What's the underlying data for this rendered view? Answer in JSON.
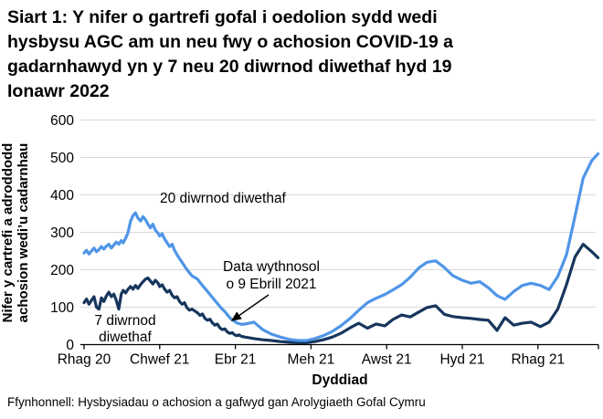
{
  "title_lines": [
    "Siart 1: Y nifer o gartrefi gofal i oedolion sydd wedi",
    "hysbysu AGC am un neu fwy o achosion COVID-19 a",
    "gadarnhawyd yn y 7 neu 20 diwrnod diwethaf hyd 19",
    "Ionawr 2022"
  ],
  "source": "Ffynhonnell: Hysbysiadau o achosion a gafwyd gan Arolygiaeth Gofal Cymru",
  "chart_data": {
    "type": "line",
    "title": "Siart 1: Y nifer o gartrefi gofal i oedolion sydd wedi hysbysu AGC am un neu fwy o achosion COVID-19 a gadarnhawyd yn y 7 neu 20 diwrnod diwethaf hyd 19 Ionawr 2022",
    "xlabel": "Dyddiad",
    "ylabel": "Nifer y cartrefi a adroddodd achosion wedi’u cadarnhau",
    "ylabel_lines": [
      "Nifer y cartrefi a adroddodd",
      "achosion wedi’u cadarnhau"
    ],
    "ylim": [
      0,
      600
    ],
    "y_ticks": [
      0,
      100,
      200,
      300,
      400,
      500,
      600
    ],
    "x_ticks": [
      {
        "date": "2020-12-01",
        "label": "Rhag 20"
      },
      {
        "date": "2021-02-01",
        "label": "Chwef 21"
      },
      {
        "date": "2021-04-01",
        "label": "Ebr 21"
      },
      {
        "date": "2021-06-01",
        "label": "Meh 21"
      },
      {
        "date": "2021-08-01",
        "label": "Awst 21"
      },
      {
        "date": "2021-10-01",
        "label": "Hyd 21"
      },
      {
        "date": "2021-12-01",
        "label": "Rhag 21"
      }
    ],
    "grid": "horizontal",
    "grid_color": "#d9d9d9",
    "annotations": {
      "series20_label": "20 diwrnod diwethaf",
      "series7_label_line1": "7 diwrnod",
      "series7_label_line2": "diwethaf",
      "weekly_note_line1": "Data wythnosol",
      "weekly_note_line2": "o 9 Ebrill 2021"
    },
    "series": [
      {
        "id": "20-day",
        "name": "20 diwrnod diwethaf",
        "color": "#4f95e8",
        "points": [
          [
            "2020-12-01",
            245
          ],
          [
            "2020-12-03",
            252
          ],
          [
            "2020-12-05",
            242
          ],
          [
            "2020-12-07",
            250
          ],
          [
            "2020-12-09",
            258
          ],
          [
            "2020-12-11",
            248
          ],
          [
            "2020-12-13",
            254
          ],
          [
            "2020-12-15",
            262
          ],
          [
            "2020-12-17",
            255
          ],
          [
            "2020-12-19",
            263
          ],
          [
            "2020-12-21",
            268
          ],
          [
            "2020-12-23",
            258
          ],
          [
            "2020-12-25",
            266
          ],
          [
            "2020-12-27",
            274
          ],
          [
            "2020-12-29",
            268
          ],
          [
            "2020-12-31",
            278
          ],
          [
            "2021-01-02",
            272
          ],
          [
            "2021-01-04",
            284
          ],
          [
            "2021-01-06",
            300
          ],
          [
            "2021-01-08",
            330
          ],
          [
            "2021-01-10",
            345
          ],
          [
            "2021-01-12",
            352
          ],
          [
            "2021-01-14",
            338
          ],
          [
            "2021-01-16",
            330
          ],
          [
            "2021-01-18",
            342
          ],
          [
            "2021-01-20",
            334
          ],
          [
            "2021-01-22",
            322
          ],
          [
            "2021-01-24",
            312
          ],
          [
            "2021-01-26",
            322
          ],
          [
            "2021-01-28",
            306
          ],
          [
            "2021-01-30",
            298
          ],
          [
            "2021-02-01",
            290
          ],
          [
            "2021-02-03",
            296
          ],
          [
            "2021-02-05",
            282
          ],
          [
            "2021-02-07",
            272
          ],
          [
            "2021-02-09",
            262
          ],
          [
            "2021-02-11",
            268
          ],
          [
            "2021-02-13",
            252
          ],
          [
            "2021-02-15",
            240
          ],
          [
            "2021-02-17",
            230
          ],
          [
            "2021-02-19",
            220
          ],
          [
            "2021-02-21",
            210
          ],
          [
            "2021-02-23",
            200
          ],
          [
            "2021-02-25",
            192
          ],
          [
            "2021-02-27",
            184
          ],
          [
            "2021-03-01",
            175
          ],
          [
            "2021-03-03",
            166
          ],
          [
            "2021-03-05",
            158
          ],
          [
            "2021-03-07",
            150
          ],
          [
            "2021-03-09",
            142
          ],
          [
            "2021-03-11",
            134
          ],
          [
            "2021-03-13",
            126
          ],
          [
            "2021-03-15",
            118
          ],
          [
            "2021-03-17",
            110
          ],
          [
            "2021-03-19",
            102
          ],
          [
            "2021-03-21",
            95
          ],
          [
            "2021-03-23",
            88
          ],
          [
            "2021-03-25",
            80
          ],
          [
            "2021-03-27",
            72
          ],
          [
            "2021-03-29",
            66
          ],
          [
            "2021-03-31",
            62
          ],
          [
            "2021-04-02",
            58
          ],
          [
            "2021-04-04",
            56
          ],
          [
            "2021-04-06",
            54
          ],
          [
            "2021-04-09",
            55
          ],
          [
            "2021-04-16",
            60
          ],
          [
            "2021-04-23",
            40
          ],
          [
            "2021-04-30",
            28
          ],
          [
            "2021-05-07",
            20
          ],
          [
            "2021-05-14",
            14
          ],
          [
            "2021-05-21",
            11
          ],
          [
            "2021-05-28",
            11
          ],
          [
            "2021-06-04",
            16
          ],
          [
            "2021-06-11",
            24
          ],
          [
            "2021-06-18",
            35
          ],
          [
            "2021-06-25",
            50
          ],
          [
            "2021-07-02",
            70
          ],
          [
            "2021-07-09",
            92
          ],
          [
            "2021-07-16",
            112
          ],
          [
            "2021-07-23",
            124
          ],
          [
            "2021-07-30",
            134
          ],
          [
            "2021-08-06",
            146
          ],
          [
            "2021-08-13",
            160
          ],
          [
            "2021-08-20",
            180
          ],
          [
            "2021-08-27",
            205
          ],
          [
            "2021-09-03",
            220
          ],
          [
            "2021-09-10",
            224
          ],
          [
            "2021-09-17",
            206
          ],
          [
            "2021-09-24",
            184
          ],
          [
            "2021-10-01",
            172
          ],
          [
            "2021-10-08",
            164
          ],
          [
            "2021-10-15",
            168
          ],
          [
            "2021-10-22",
            152
          ],
          [
            "2021-10-29",
            131
          ],
          [
            "2021-11-05",
            121
          ],
          [
            "2021-11-12",
            142
          ],
          [
            "2021-11-19",
            158
          ],
          [
            "2021-11-26",
            164
          ],
          [
            "2021-12-03",
            158
          ],
          [
            "2021-12-10",
            147
          ],
          [
            "2021-12-17",
            182
          ],
          [
            "2021-12-24",
            240
          ],
          [
            "2021-12-31",
            345
          ],
          [
            "2022-01-07",
            445
          ],
          [
            "2022-01-14",
            492
          ],
          [
            "2022-01-19",
            510
          ]
        ]
      },
      {
        "id": "7-day",
        "name": "7 diwrnod diwethaf",
        "color": "#17365d",
        "points": [
          [
            "2020-12-01",
            112
          ],
          [
            "2020-12-03",
            122
          ],
          [
            "2020-12-05",
            108
          ],
          [
            "2020-12-07",
            118
          ],
          [
            "2020-12-09",
            128
          ],
          [
            "2020-12-11",
            100
          ],
          [
            "2020-12-13",
            95
          ],
          [
            "2020-12-15",
            125
          ],
          [
            "2020-12-17",
            115
          ],
          [
            "2020-12-19",
            130
          ],
          [
            "2020-12-21",
            140
          ],
          [
            "2020-12-23",
            128
          ],
          [
            "2020-12-25",
            135
          ],
          [
            "2020-12-27",
            118
          ],
          [
            "2020-12-29",
            95
          ],
          [
            "2020-12-31",
            135
          ],
          [
            "2021-01-02",
            145
          ],
          [
            "2021-01-04",
            138
          ],
          [
            "2021-01-06",
            148
          ],
          [
            "2021-01-08",
            155
          ],
          [
            "2021-01-10",
            148
          ],
          [
            "2021-01-12",
            158
          ],
          [
            "2021-01-14",
            150
          ],
          [
            "2021-01-16",
            160
          ],
          [
            "2021-01-18",
            168
          ],
          [
            "2021-01-20",
            175
          ],
          [
            "2021-01-22",
            178
          ],
          [
            "2021-01-24",
            170
          ],
          [
            "2021-01-26",
            162
          ],
          [
            "2021-01-28",
            172
          ],
          [
            "2021-01-30",
            165
          ],
          [
            "2021-02-01",
            155
          ],
          [
            "2021-02-03",
            160
          ],
          [
            "2021-02-05",
            148
          ],
          [
            "2021-02-07",
            140
          ],
          [
            "2021-02-09",
            145
          ],
          [
            "2021-02-11",
            132
          ],
          [
            "2021-02-13",
            125
          ],
          [
            "2021-02-15",
            128
          ],
          [
            "2021-02-17",
            115
          ],
          [
            "2021-02-19",
            108
          ],
          [
            "2021-02-21",
            112
          ],
          [
            "2021-02-23",
            98
          ],
          [
            "2021-02-25",
            92
          ],
          [
            "2021-02-27",
            95
          ],
          [
            "2021-03-01",
            85
          ],
          [
            "2021-03-03",
            78
          ],
          [
            "2021-03-05",
            82
          ],
          [
            "2021-03-07",
            70
          ],
          [
            "2021-03-09",
            65
          ],
          [
            "2021-03-11",
            68
          ],
          [
            "2021-03-13",
            58
          ],
          [
            "2021-03-15",
            52
          ],
          [
            "2021-03-17",
            55
          ],
          [
            "2021-03-19",
            45
          ],
          [
            "2021-03-21",
            40
          ],
          [
            "2021-03-23",
            42
          ],
          [
            "2021-03-25",
            34
          ],
          [
            "2021-03-27",
            30
          ],
          [
            "2021-03-29",
            32
          ],
          [
            "2021-03-31",
            26
          ],
          [
            "2021-04-02",
            24
          ],
          [
            "2021-04-04",
            26
          ],
          [
            "2021-04-06",
            22
          ],
          [
            "2021-04-09",
            20
          ],
          [
            "2021-04-16",
            16
          ],
          [
            "2021-04-23",
            13
          ],
          [
            "2021-04-30",
            11
          ],
          [
            "2021-05-07",
            8
          ],
          [
            "2021-05-14",
            6
          ],
          [
            "2021-05-21",
            5
          ],
          [
            "2021-05-28",
            5
          ],
          [
            "2021-06-04",
            8
          ],
          [
            "2021-06-11",
            13
          ],
          [
            "2021-06-18",
            20
          ],
          [
            "2021-06-25",
            30
          ],
          [
            "2021-07-02",
            45
          ],
          [
            "2021-07-09",
            57
          ],
          [
            "2021-07-16",
            44
          ],
          [
            "2021-07-23",
            55
          ],
          [
            "2021-07-30",
            50
          ],
          [
            "2021-08-06",
            67
          ],
          [
            "2021-08-13",
            79
          ],
          [
            "2021-08-20",
            74
          ],
          [
            "2021-08-27",
            87
          ],
          [
            "2021-09-03",
            99
          ],
          [
            "2021-09-10",
            104
          ],
          [
            "2021-09-17",
            81
          ],
          [
            "2021-09-24",
            75
          ],
          [
            "2021-10-01",
            72
          ],
          [
            "2021-10-08",
            70
          ],
          [
            "2021-10-15",
            67
          ],
          [
            "2021-10-22",
            65
          ],
          [
            "2021-10-29",
            38
          ],
          [
            "2021-11-05",
            72
          ],
          [
            "2021-11-12",
            52
          ],
          [
            "2021-11-19",
            57
          ],
          [
            "2021-11-26",
            60
          ],
          [
            "2021-12-03",
            48
          ],
          [
            "2021-12-10",
            60
          ],
          [
            "2021-12-17",
            95
          ],
          [
            "2021-12-24",
            160
          ],
          [
            "2021-12-31",
            235
          ],
          [
            "2022-01-07",
            268
          ],
          [
            "2022-01-14",
            248
          ],
          [
            "2022-01-19",
            232
          ]
        ]
      }
    ]
  }
}
